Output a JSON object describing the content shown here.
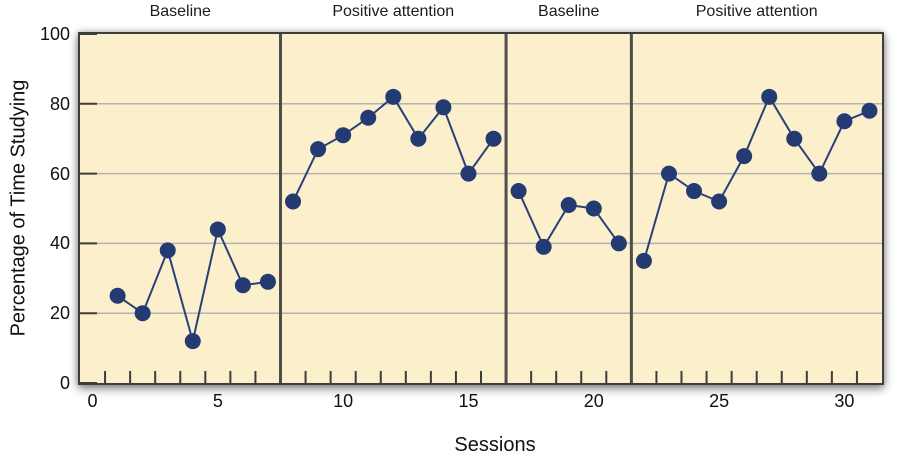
{
  "chart_data": {
    "type": "line",
    "title": "",
    "xlabel": "Sessions",
    "ylabel": "Percentage of Time Studying",
    "xlim": [
      -0.5,
      31.5
    ],
    "ylim": [
      0,
      100
    ],
    "x_tick_labels": [
      0,
      5,
      10,
      15,
      20,
      25,
      30
    ],
    "y_tick_labels": [
      0,
      20,
      40,
      60,
      80,
      100
    ],
    "x_minor_tick_start": 0.5,
    "x_minor_tick_end": 30.5,
    "x_minor_tick_step": 1,
    "gridlines_y": [
      20,
      40,
      60,
      80
    ],
    "legend_position": "none",
    "grid": "horizontal-only",
    "phase_boundaries": [
      7.5,
      16.5,
      21.5
    ],
    "phases": [
      {
        "label": "Baseline",
        "sessions": [
          1,
          2,
          3,
          4,
          5,
          6,
          7
        ],
        "values": [
          25,
          20,
          38,
          12,
          44,
          28,
          29
        ]
      },
      {
        "label": "Positive attention",
        "sessions": [
          8,
          9,
          10,
          11,
          12,
          13,
          14,
          15,
          16
        ],
        "values": [
          52,
          67,
          71,
          76,
          82,
          70,
          79,
          60,
          70
        ]
      },
      {
        "label": "Baseline",
        "sessions": [
          17,
          18,
          19,
          20,
          21
        ],
        "values": [
          55,
          39,
          51,
          50,
          40
        ]
      },
      {
        "label": "Positive attention",
        "sessions": [
          22,
          23,
          24,
          25,
          26,
          27,
          28,
          29,
          30,
          31
        ],
        "values": [
          35,
          60,
          55,
          52,
          65,
          82,
          70,
          60,
          75,
          78
        ]
      }
    ],
    "colors": {
      "plot_background": "#fcefcc",
      "marker": "#243a72",
      "line": "#2a4078",
      "frame": "#3d3d3d",
      "gridline": "#b3b3b3",
      "divider": "#4d4d4d",
      "text": "#1c1c1c"
    }
  }
}
